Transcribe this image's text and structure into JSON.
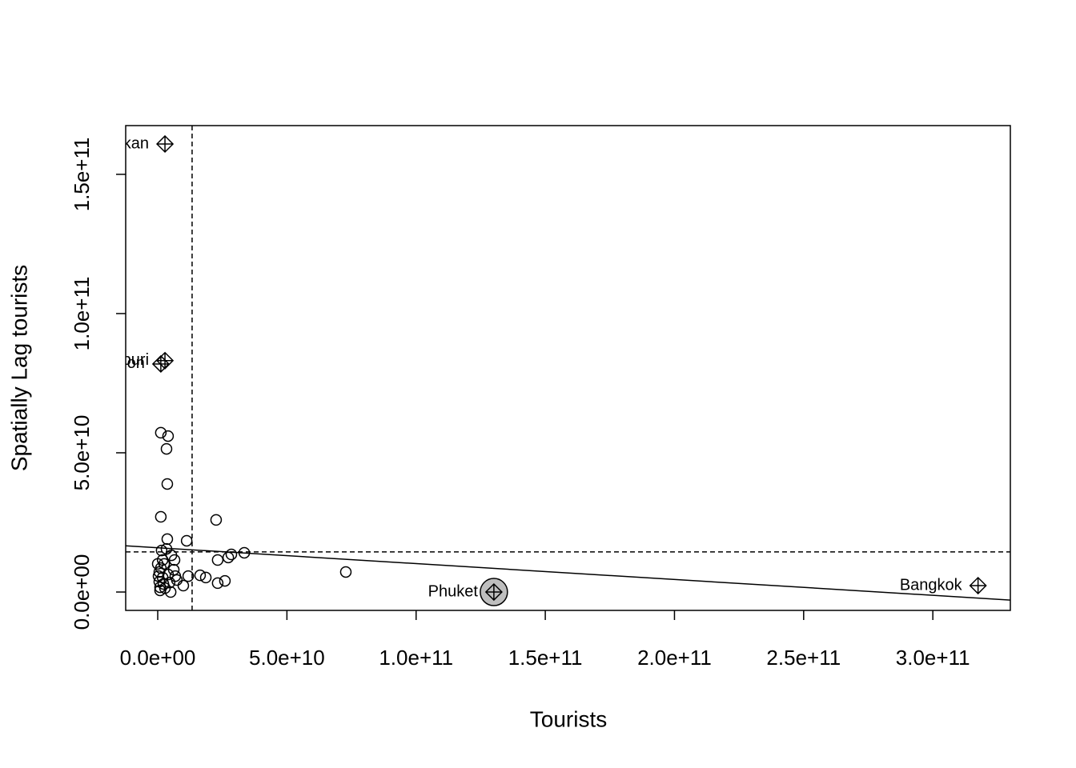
{
  "chart_data": {
    "type": "scatter",
    "xlabel": "Tourists",
    "ylabel": "Spatially Lag tourists",
    "xlim": [
      -12400000000.0,
      330000000000.0
    ],
    "ylim": [
      -6600000000.0,
      167500000000.0
    ],
    "xticks": [
      {
        "value": 0,
        "label": "0.0e+00"
      },
      {
        "value": 50000000000.0,
        "label": "5.0e+10"
      },
      {
        "value": 100000000000.0,
        "label": "1.0e+11"
      },
      {
        "value": 150000000000.0,
        "label": "1.5e+11"
      },
      {
        "value": 200000000000.0,
        "label": "2.0e+11"
      },
      {
        "value": 250000000000.0,
        "label": "2.5e+11"
      },
      {
        "value": 300000000000.0,
        "label": "3.0e+11"
      }
    ],
    "yticks": [
      {
        "value": 0,
        "label": "0.0e+00"
      },
      {
        "value": 50000000000.0,
        "label": "5.0e+10"
      },
      {
        "value": 100000000000.0,
        "label": "1.0e+11"
      },
      {
        "value": 150000000000.0,
        "label": "1.5e+11"
      }
    ],
    "x_mean": 13300000000.0,
    "y_mean": 14400000000.0,
    "regression": {
      "intercept": 15910000000.0,
      "slope": -0.057
    },
    "x": [
      1200000000.0,
      4000000000.0,
      3400000000.0,
      3700000000.0,
      1200000000.0,
      22600000000.0,
      11200000000.0,
      3700000000.0,
      1500000000.0,
      3400000000.0,
      5300000000.0,
      6500000000.0,
      28500000000.0,
      33500000000.0,
      27300000000.0,
      23200000000.0,
      72800000000.0,
      16400000000.0,
      11800000000.0,
      18600000000.0,
      26000000000.0,
      23200000000.0,
      9900000000.0,
      5000000000.0,
      2800000000.0,
      900000000.0,
      600000000.0,
      1900000000.0,
      4000000000.0,
      6200000000.0,
      7400000000.0,
      1200000000.0,
      0,
      2500000000.0,
      600000000.0,
      2200000000.0,
      4600000000.0,
      6800000000.0,
      900000000.0,
      1900000000.0,
      300000000.0
    ],
    "y": [
      57200000000.0,
      56000000000.0,
      51400000000.0,
      38800000000.0,
      27000000000.0,
      25900000000.0,
      18400000000.0,
      19000000000.0,
      14900000000.0,
      15500000000.0,
      13200000000.0,
      11500000000.0,
      13500000000.0,
      14100000000.0,
      12400000000.0,
      11500000000.0,
      7200000000.0,
      6000000000.0,
      5700000000.0,
      5200000000.0,
      4000000000.0,
      3200000000.0,
      2300000000.0,
      0,
      1400000000.0,
      1700000000.0,
      3700000000.0,
      5200000000.0,
      6300000000.0,
      8000000000.0,
      4300000000.0,
      8600000000.0,
      10100000000.0,
      10100000000.0,
      7200000000.0,
      2900000000.0,
      3400000000.0,
      5700000000.0,
      600000000.0,
      11500000000.0,
      5700000000.0
    ],
    "labeled": [
      {
        "label": "kan",
        "x": 2800000000.0,
        "y": 160900000000.0
      },
      {
        "label": "buri",
        "x": 2800000000.0,
        "y": 83100000000.0
      },
      {
        "label": "on",
        "x": 1200000000.0,
        "y": 81900000000.0
      },
      {
        "label": "Phuket",
        "x": 130100000000.0,
        "y": 0,
        "highlight_color": "#bebebe"
      },
      {
        "label": "Bangkok",
        "x": 317500000000.0,
        "y": 2300000000.0
      }
    ]
  }
}
